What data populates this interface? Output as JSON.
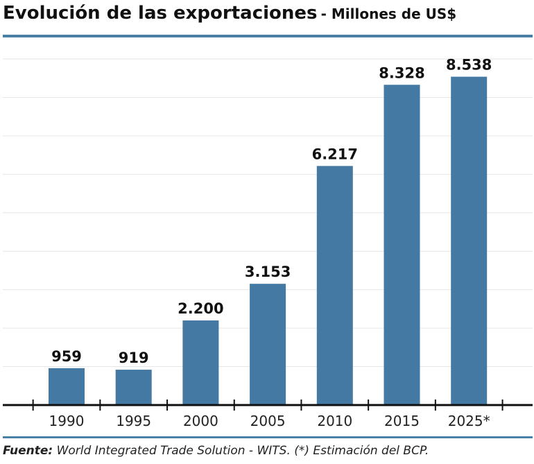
{
  "title": "Evolución de las exportaciones",
  "subtitle": "- Millones de US$",
  "footer": {
    "label": "Fuente:",
    "text": "World Integrated Trade Solution - WITS. (*) Estimación del BCP."
  },
  "colors": {
    "bar": "#4479a4",
    "rule": "#4a7fa6",
    "grid": "#e6e6e6",
    "axis": "#111111"
  },
  "chart_data": {
    "type": "bar",
    "title": "Evolución de las exportaciones",
    "subtitle": "Millones de US$",
    "categories": [
      "1990",
      "1995",
      "2000",
      "2005",
      "2010",
      "2015",
      "2025*"
    ],
    "values": [
      959,
      919,
      2200,
      3153,
      6217,
      8328,
      8538
    ],
    "data_labels": [
      "959",
      "919",
      "2.200",
      "3.153",
      "6.217",
      "8.328",
      "8.538"
    ],
    "xlabel": "",
    "ylabel": "",
    "ylim": [
      0,
      9000
    ],
    "grid": true,
    "grid_step": 1000
  }
}
